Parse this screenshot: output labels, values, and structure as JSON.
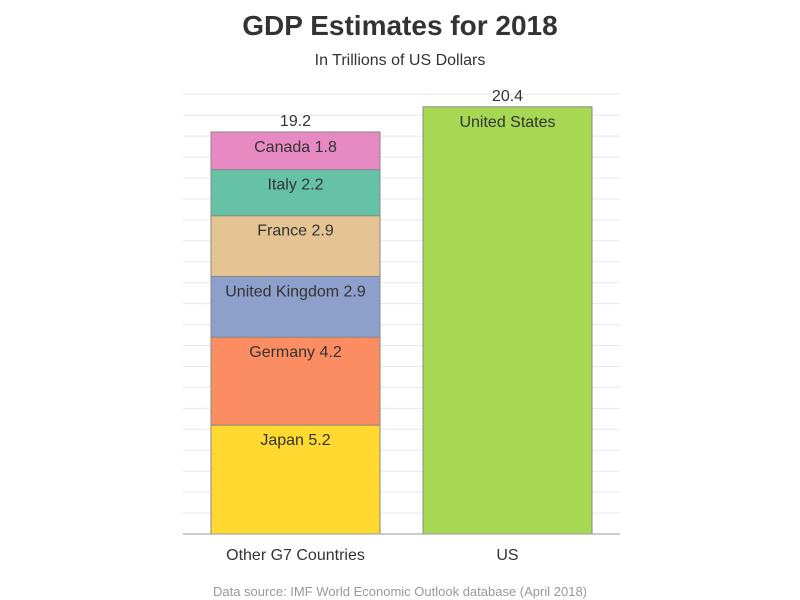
{
  "chart_data": {
    "type": "bar",
    "stacked": true,
    "title": "GDP Estimates for 2018",
    "subtitle": "In Trillions of US Dollars",
    "xlabel": "",
    "ylabel": "",
    "ylim": [
      0,
      21
    ],
    "grid": true,
    "categories": [
      "Other G7 Countries",
      "US"
    ],
    "stacks": [
      {
        "category": "Other G7 Countries",
        "total_label": "19.2",
        "segments": [
          {
            "name": "Japan",
            "value": 5.2,
            "label": "Japan 5.2",
            "color": "#FFD92F"
          },
          {
            "name": "Germany",
            "value": 4.2,
            "label": "Germany 4.2",
            "color": "#FC8D62"
          },
          {
            "name": "United Kingdom",
            "value": 2.9,
            "label": "United Kingdom 2.9",
            "color": "#8DA0CB"
          },
          {
            "name": "France",
            "value": 2.9,
            "label": "France 2.9",
            "color": "#E5C494"
          },
          {
            "name": "Italy",
            "value": 2.2,
            "label": "Italy 2.2",
            "color": "#66C2A5"
          },
          {
            "name": "Canada",
            "value": 1.8,
            "label": "Canada 1.8",
            "color": "#E78AC3"
          }
        ]
      },
      {
        "category": "US",
        "total_label": "20.4",
        "segments": [
          {
            "name": "United States",
            "value": 20.4,
            "label": "United States",
            "color": "#A6D854"
          }
        ]
      }
    ],
    "footnote": "Data source: IMF World Economic Outlook database (April 2018)"
  }
}
